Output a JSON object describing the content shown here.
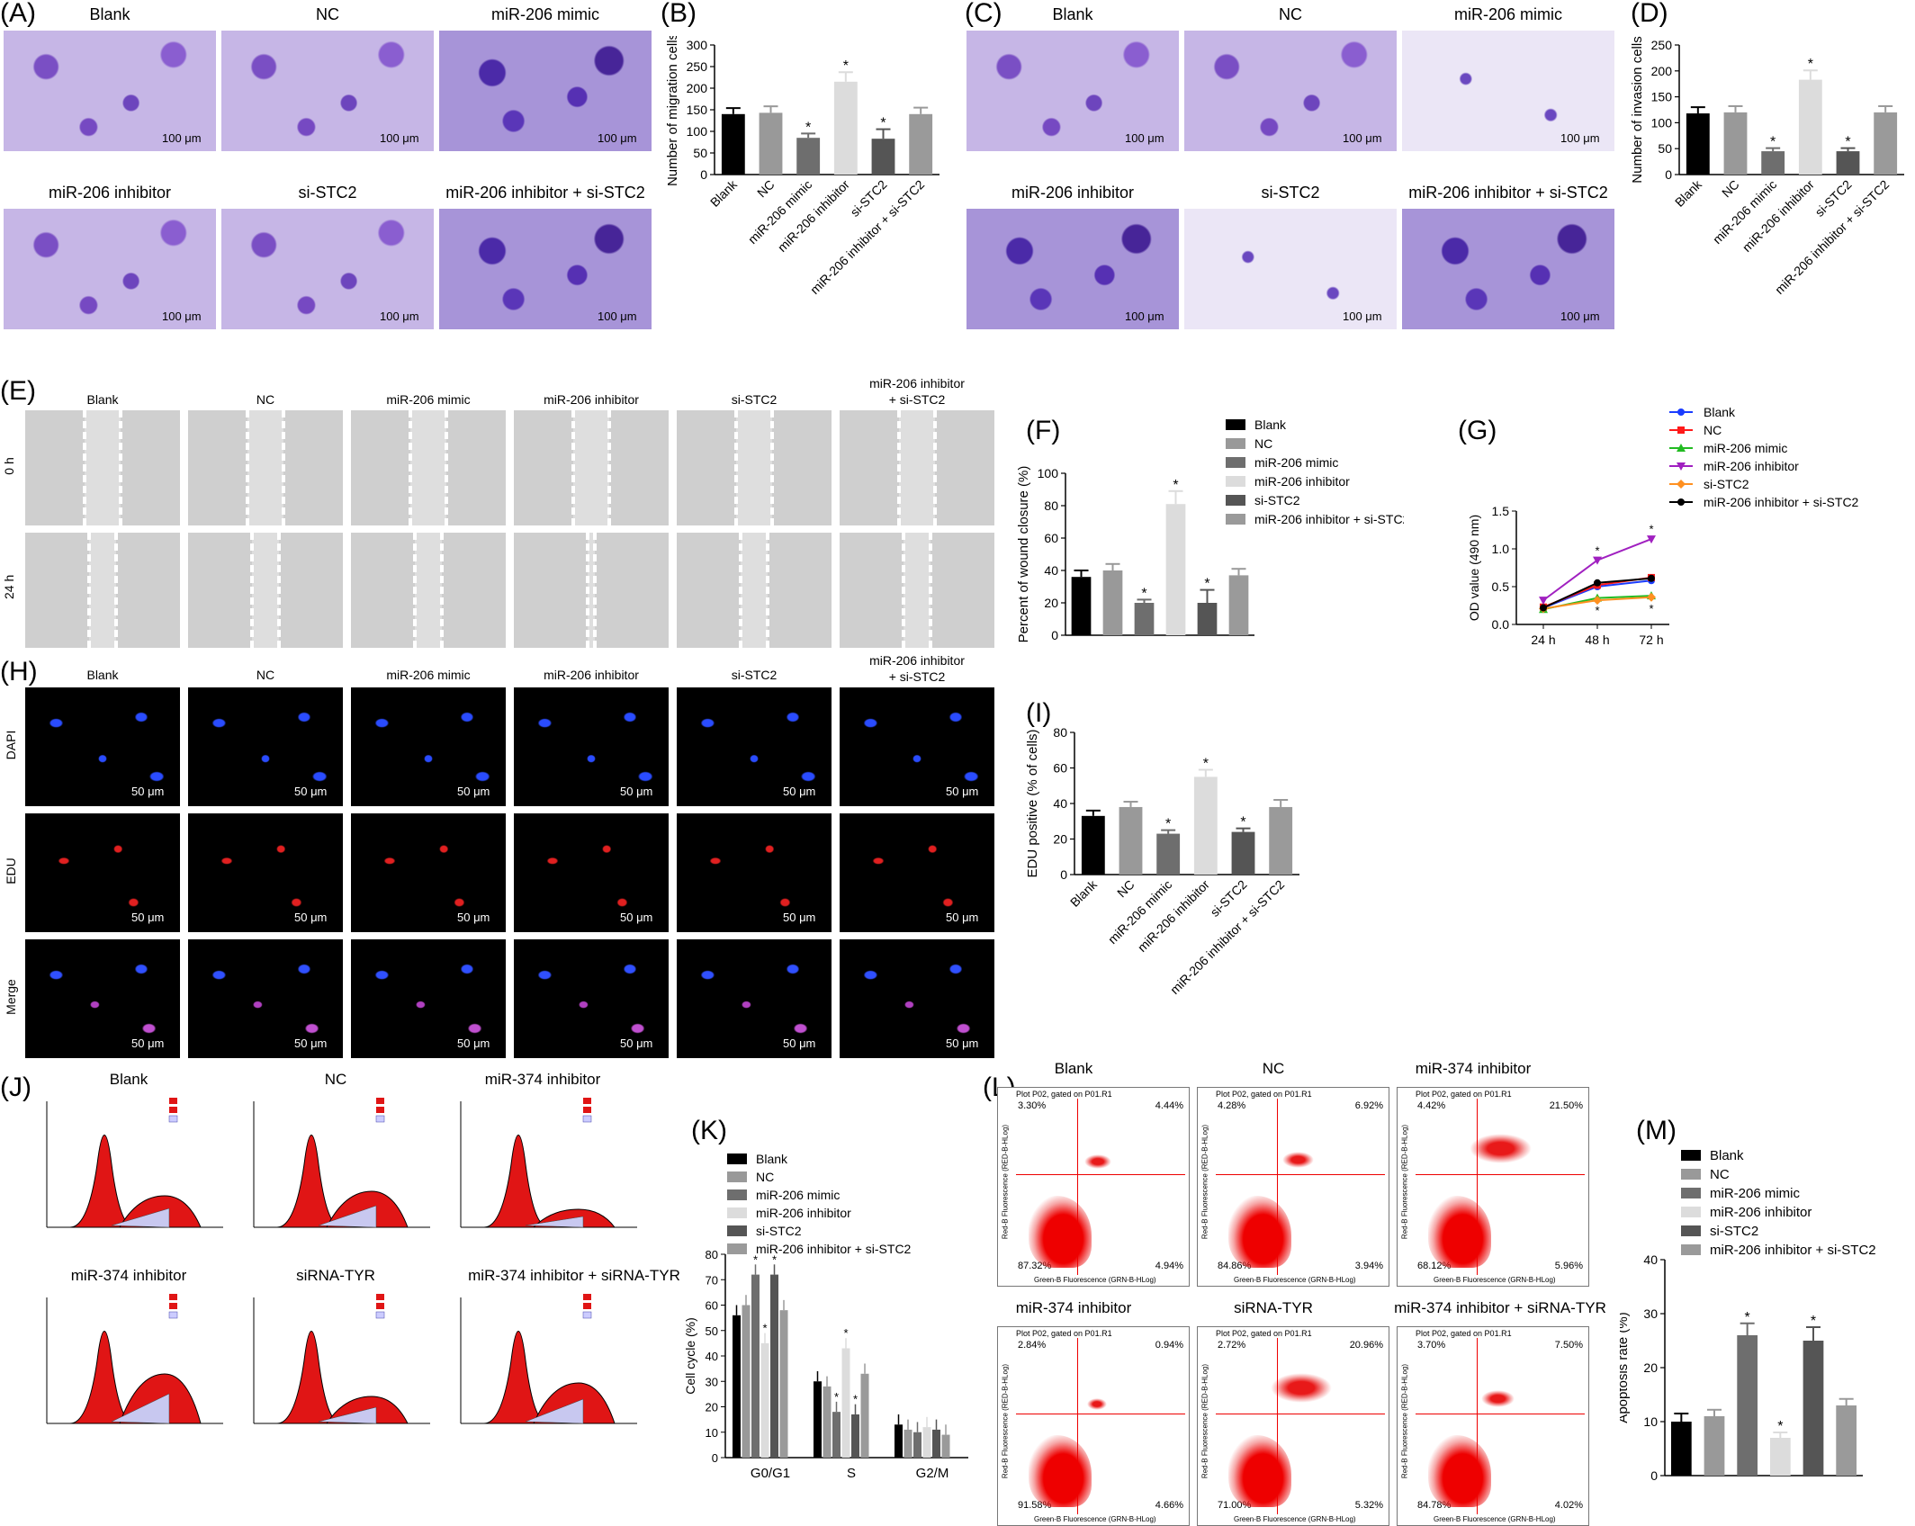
{
  "panels": {
    "A": {
      "letter": "(A)",
      "tiles": [
        "Blank",
        "NC",
        "miR-206 mimic",
        "miR-206 inhibitor",
        "si-STC2",
        "miR-206 inhibitor + si-STC2"
      ],
      "scale": "100 μm"
    },
    "C": {
      "letter": "(C)",
      "tiles": [
        "Blank",
        "NC",
        "miR-206 mimic",
        "miR-206 inhibitor",
        "si-STC2",
        "miR-206 inhibitor + si-STC2"
      ],
      "scale": "100 μm"
    },
    "E": {
      "letter": "(E)",
      "columns": [
        "Blank",
        "NC",
        "miR-206 mimic",
        "miR-206 inhibitor",
        "si-STC2",
        "miR-206 inhibitor\n+ si-STC2"
      ],
      "rows": [
        "0 h",
        "24 h"
      ]
    },
    "H": {
      "letter": "(H)",
      "columns": [
        "Blank",
        "NC",
        "miR-206 mimic",
        "miR-206 inhibitor",
        "si-STC2",
        "miR-206 inhibitor\n+ si-STC2"
      ],
      "rows": [
        "DAPI",
        "EDU",
        "Merge"
      ],
      "scale": "50 μm"
    },
    "J": {
      "letter": "(J)",
      "titles": [
        "Blank",
        "NC",
        "miR-374 inhibitor",
        "miR-374 inhibitor",
        "siRNA-TYR",
        "miR-374 inhibitor + siRNA-TYR"
      ]
    },
    "L": {
      "letter": "(L)",
      "titles": [
        "Blank",
        "NC",
        "miR-374 inhibitor",
        "miR-374 inhibitor",
        "siRNA-TYR",
        "miR-374 inhibitor + siRNA-TYR"
      ],
      "header": "Plot P02, gated on P01.R1",
      "xaxis": "Green-B Fluorescence (GRN-B-HLog)",
      "yaxis": "Red-B Fluorescence (RED-B-HLog)",
      "quadrants": [
        [
          "3.30%",
          "4.44%",
          "87.32%",
          "4.94%"
        ],
        [
          "4.28%",
          "6.92%",
          "84.86%",
          "3.94%"
        ],
        [
          "4.42%",
          "21.50%",
          "68.12%",
          "5.96%"
        ],
        [
          "2.84%",
          "0.94%",
          "91.58%",
          "4.66%"
        ],
        [
          "2.72%",
          "20.96%",
          "71.00%",
          "5.32%"
        ],
        [
          "3.70%",
          "7.50%",
          "84.78%",
          "4.02%"
        ]
      ]
    }
  },
  "groups": [
    "Blank",
    "NC",
    "miR-206 mimic",
    "miR-206 inhibitor",
    "si-STC2",
    "miR-206 inhibitor + si-STC2"
  ],
  "group_colors": [
    "#000000",
    "#999999",
    "#6e6e6e",
    "#dcdcdc",
    "#555555",
    "#9a9a9a"
  ],
  "line_colors": [
    "#1a3cff",
    "#ff1a1a",
    "#22bb22",
    "#a020c0",
    "#ff9020",
    "#000000"
  ],
  "chart_data": [
    {
      "id": "B",
      "letter": "(B)",
      "type": "bar",
      "categories": [
        "Blank",
        "NC",
        "miR-206 mimic",
        "miR-206 inhibitor",
        "si-STC2",
        "miR-206 inhibitor + si-STC2"
      ],
      "values": [
        140,
        143,
        85,
        215,
        83,
        140
      ],
      "errors": [
        14,
        15,
        10,
        22,
        22,
        15
      ],
      "stars": [
        false,
        false,
        true,
        true,
        true,
        false
      ],
      "ylabel": "Number of migration cells",
      "ylim": [
        0,
        300
      ],
      "yticks": [
        0,
        50,
        100,
        150,
        200,
        250,
        300
      ]
    },
    {
      "id": "D",
      "letter": "(D)",
      "type": "bar",
      "categories": [
        "Blank",
        "NC",
        "miR-206 mimic",
        "miR-206 inhibitor",
        "si-STC2",
        "miR-206 inhibitor + si-STC2"
      ],
      "values": [
        118,
        120,
        45,
        183,
        45,
        120
      ],
      "errors": [
        12,
        12,
        6,
        18,
        6,
        12
      ],
      "stars": [
        false,
        false,
        true,
        true,
        true,
        false
      ],
      "ylabel": "Number of invasion cells",
      "ylim": [
        0,
        250
      ],
      "yticks": [
        0,
        50,
        100,
        150,
        200,
        250
      ]
    },
    {
      "id": "F",
      "letter": "(F)",
      "type": "bar",
      "categories": [
        "Blank",
        "NC",
        "miR-206 mimic",
        "miR-206 inhibitor",
        "si-STC2",
        "miR-206 inhibitor + si-STC2"
      ],
      "values": [
        36,
        40,
        20,
        81,
        20,
        37
      ],
      "errors": [
        4,
        4,
        2,
        8,
        8,
        4
      ],
      "stars": [
        false,
        false,
        true,
        true,
        true,
        false
      ],
      "ylabel": "Percent of wound closure (%)",
      "ylim": [
        0,
        100
      ],
      "yticks": [
        0,
        20,
        40,
        60,
        80,
        100
      ],
      "legend": [
        "Blank",
        "NC",
        "miR-206 mimic",
        "miR-206 inhibitor",
        "si-STC2",
        "miR-206 inhibitor + si-STC2"
      ]
    },
    {
      "id": "G",
      "letter": "(G)",
      "type": "line",
      "x": [
        "24 h",
        "48 h",
        "72 h"
      ],
      "series": [
        {
          "name": "Blank",
          "values": [
            0.22,
            0.5,
            0.58
          ]
        },
        {
          "name": "NC",
          "values": [
            0.23,
            0.52,
            0.62
          ]
        },
        {
          "name": "miR-206 mimic",
          "values": [
            0.2,
            0.35,
            0.38
          ]
        },
        {
          "name": "miR-206 inhibitor",
          "values": [
            0.32,
            0.85,
            1.13
          ]
        },
        {
          "name": "si-STC2",
          "values": [
            0.21,
            0.32,
            0.36
          ]
        },
        {
          "name": "miR-206 inhibitor + si-STC2",
          "values": [
            0.22,
            0.55,
            0.61
          ]
        }
      ],
      "ylabel": "OD value (490 nm)",
      "ylim": [
        0,
        1.5
      ],
      "yticks": [
        "0.0",
        "0.5",
        "1.0",
        "1.5"
      ]
    },
    {
      "id": "I",
      "letter": "(I)",
      "type": "bar",
      "categories": [
        "Blank",
        "NC",
        "miR-206 mimic",
        "miR-206 inhibitor",
        "si-STC2",
        "miR-206 inhibitor + si-STC2"
      ],
      "values": [
        33,
        38,
        23,
        55,
        24,
        38
      ],
      "errors": [
        3,
        3,
        2,
        4,
        2,
        4
      ],
      "stars": [
        false,
        false,
        true,
        true,
        true,
        false
      ],
      "ylabel": "EDU positive (% of cells)",
      "ylim": [
        0,
        80
      ],
      "yticks": [
        0,
        20,
        40,
        60,
        80
      ]
    },
    {
      "id": "K",
      "letter": "(K)",
      "type": "bar",
      "categories": [
        "G0/G1",
        "S",
        "G2/M"
      ],
      "series": [
        {
          "name": "Blank",
          "values": [
            56,
            30,
            13
          ]
        },
        {
          "name": "NC",
          "values": [
            60,
            28,
            11
          ]
        },
        {
          "name": "miR-206 mimic",
          "values": [
            72,
            18,
            10
          ]
        },
        {
          "name": "miR-206 inhibitor",
          "values": [
            45,
            43,
            12
          ]
        },
        {
          "name": "si-STC2",
          "values": [
            72,
            17,
            11
          ]
        },
        {
          "name": "miR-206 inhibitor + si-STC2",
          "values": [
            58,
            33,
            9
          ]
        }
      ],
      "ylabel": "Cell cycle (%)",
      "ylim": [
        0,
        80
      ],
      "yticks": [
        0,
        10,
        20,
        30,
        40,
        50,
        60,
        70,
        80
      ],
      "legend": [
        "Blank",
        "NC",
        "miR-206 mimic",
        "miR-206 inhibitor",
        "si-STC2",
        "miR-206 inhibitor + si-STC2"
      ]
    },
    {
      "id": "M",
      "letter": "(M)",
      "type": "bar",
      "categories": [
        "Blank",
        "NC",
        "miR-206 mimic",
        "miR-206 inhibitor",
        "si-STC2",
        "miR-206 inhibitor + si-STC2"
      ],
      "values": [
        10,
        11,
        26,
        7,
        25,
        13
      ],
      "errors": [
        1.5,
        1.2,
        2.2,
        1,
        2.5,
        1.2
      ],
      "stars": [
        false,
        false,
        true,
        true,
        true,
        false
      ],
      "ylabel": "Apoptosis rate (%)",
      "ylim": [
        0,
        40
      ],
      "yticks": [
        0,
        10,
        20,
        30,
        40
      ],
      "legend": [
        "Blank",
        "NC",
        "miR-206 mimic",
        "miR-206 inhibitor",
        "si-STC2",
        "miR-206 inhibitor + si-STC2"
      ]
    }
  ]
}
